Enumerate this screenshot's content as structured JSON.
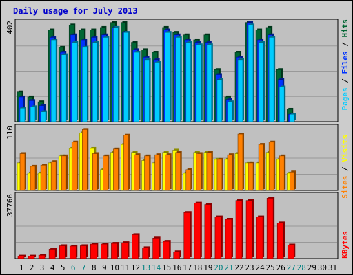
{
  "title": "Daily usage for July 2013",
  "colors": {
    "hits": "#006633",
    "files": "#0033ff",
    "pages": "#00ccff",
    "visits": "#ffff00",
    "sites": "#ff8000",
    "kbytes": "#ff0000",
    "weekend_label": "#008080",
    "plot_bg": "#c0c0c0",
    "frame_bg": "#cccccc"
  },
  "chart_data": [
    {
      "type": "bar",
      "name": "hits-files-pages",
      "categories": [
        "1",
        "2",
        "3",
        "4",
        "5",
        "6",
        "7",
        "8",
        "9",
        "10",
        "11",
        "12",
        "13",
        "14",
        "15",
        "16",
        "17",
        "18",
        "19",
        "20",
        "21",
        "22",
        "23",
        "24",
        "25",
        "26",
        "27",
        "28",
        "29",
        "30",
        "31"
      ],
      "ylim": [
        0,
        402
      ],
      "max_label": "402",
      "legend": {
        "pages": "Pages",
        "files": "Files",
        "hits": "Hits",
        "sep": " / "
      },
      "series": [
        {
          "name": "Hits",
          "values": [
            120,
            100,
            80,
            370,
            300,
            390,
            370,
            370,
            380,
            400,
            400,
            320,
            290,
            280,
            380,
            360,
            350,
            330,
            350,
            210,
            100,
            280,
            400,
            370,
            380,
            210,
            50,
            0,
            0,
            0,
            0
          ]
        },
        {
          "name": "Files",
          "values": [
            100,
            85,
            65,
            340,
            280,
            350,
            330,
            340,
            350,
            380,
            360,
            290,
            260,
            250,
            370,
            350,
            330,
            320,
            320,
            190,
            90,
            260,
            400,
            330,
            350,
            170,
            30,
            0,
            0,
            0,
            0
          ]
        },
        {
          "name": "Pages",
          "values": [
            55,
            60,
            40,
            330,
            270,
            320,
            300,
            320,
            340,
            380,
            360,
            280,
            250,
            240,
            360,
            340,
            320,
            310,
            310,
            170,
            80,
            250,
            390,
            320,
            340,
            140,
            30,
            0,
            0,
            0,
            0
          ]
        }
      ]
    },
    {
      "type": "bar",
      "name": "visits-sites",
      "ylim": [
        0,
        110
      ],
      "max_label": "110",
      "legend": {
        "sites": "Sites",
        "visits": "Visits",
        "sep": " / "
      },
      "series": [
        {
          "name": "Visits",
          "values": [
            48,
            30,
            30,
            48,
            60,
            73,
            100,
            73,
            36,
            66,
            80,
            66,
            52,
            48,
            66,
            70,
            30,
            66,
            66,
            54,
            54,
            64,
            48,
            48,
            66,
            54,
            30,
            0,
            0,
            0,
            0
          ]
        },
        {
          "name": "Sites",
          "values": [
            64,
            42,
            44,
            50,
            60,
            84,
            106,
            64,
            60,
            72,
            96,
            62,
            60,
            62,
            62,
            66,
            36,
            64,
            66,
            54,
            62,
            98,
            48,
            80,
            84,
            60,
            32,
            0,
            0,
            0,
            0
          ]
        }
      ]
    },
    {
      "type": "bar",
      "name": "kbytes",
      "ylim": [
        0,
        37766
      ],
      "max_label": "37766",
      "legend": {
        "kbytes": "KBytes"
      },
      "series": [
        {
          "name": "KBytes",
          "values": [
            1400,
            1400,
            2000,
            5600,
            7600,
            7400,
            7600,
            8600,
            8600,
            9000,
            9400,
            14200,
            6400,
            12200,
            10200,
            4000,
            27400,
            33000,
            32200,
            24800,
            23400,
            34600,
            34600,
            24800,
            36000,
            21200,
            8000,
            0,
            0,
            0,
            0
          ]
        }
      ]
    }
  ]
}
